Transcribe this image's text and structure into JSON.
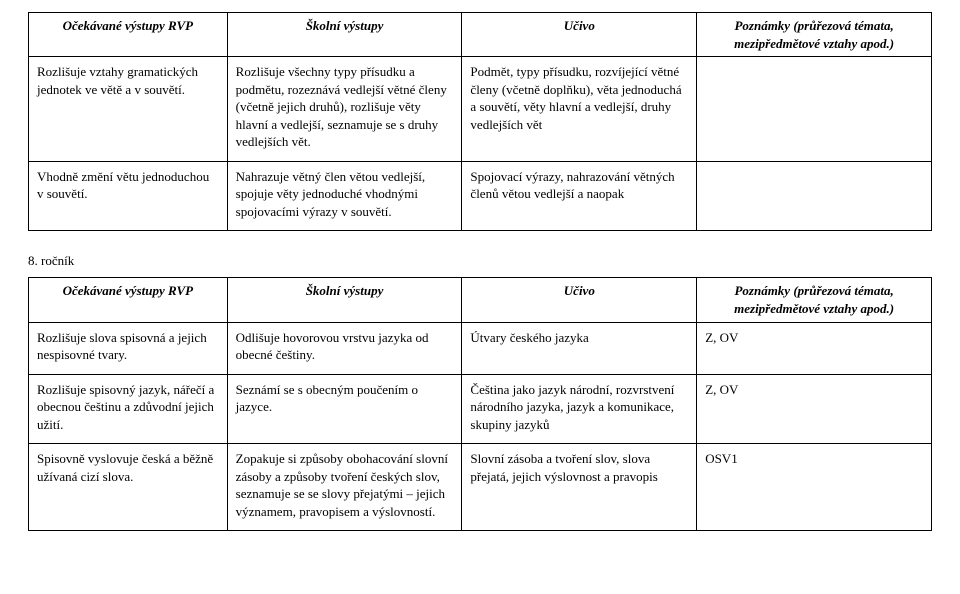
{
  "headers": {
    "c1": "Očekávané výstupy RVP",
    "c2": "Školní výstupy",
    "c3": "Učivo",
    "c4": "Poznámky (průřezová témata, mezipředmětové vztahy apod.)"
  },
  "sectionLabel": "8. ročník",
  "table1": {
    "rows": [
      {
        "c1": "Rozlišuje vztahy gramatických jednotek ve větě a v souvětí.",
        "c2": "Rozlišuje všechny typy přísudku a podmětu, rozeznává vedlejší větné členy (včetně jejich druhů), rozlišuje věty hlavní a vedlejší, seznamuje se s druhy vedlejších vět.",
        "c3": "Podmět, typy přísudku, rozvíjející větné členy (včetně doplňku), věta jednoduchá a souvětí, věty hlavní a vedlejší, druhy vedlejších vět",
        "c4": ""
      },
      {
        "c1": "Vhodně změní větu jednoduchou v souvětí.",
        "c2": "Nahrazuje větný člen větou vedlejší, spojuje věty jednoduché vhodnými spojovacími výrazy v souvětí.",
        "c3": "Spojovací výrazy, nahrazování větných členů větou vedlejší a naopak",
        "c4": ""
      }
    ]
  },
  "table2": {
    "rows": [
      {
        "c1": "Rozlišuje slova spisovná a jejich nespisovné tvary.",
        "c2": "Odlišuje hovorovou vrstvu jazyka od obecné češtiny.",
        "c3": "Útvary českého jazyka",
        "c4": "Z, OV"
      },
      {
        "c1": "Rozlišuje spisovný jazyk, nářečí a obecnou češtinu a zdůvodní jejich užití.",
        "c2": "Seznámí se s obecným poučením o jazyce.",
        "c3": "Čeština jako jazyk národní, rozvrstvení národního jazyka, jazyk a komunikace, skupiny jazyků",
        "c4": "Z, OV"
      },
      {
        "c1": "Spisovně vyslovuje česká a běžně užívaná cizí slova.",
        "c2": "Zopakuje si způsoby obohacování slovní zásoby a způsoby tvoření českých slov, seznamuje se se slovy přejatými – jejich významem, pravopisem a výslovností.",
        "c3": "Slovní zásoba a tvoření slov, slova přejatá, jejich výslovnost a pravopis",
        "c4": "OSV1"
      }
    ]
  }
}
